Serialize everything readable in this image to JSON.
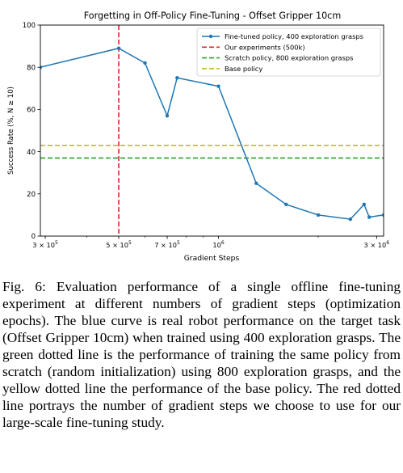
{
  "chart_data": {
    "type": "line",
    "title": "Forgetting in Off-Policy Fine-Tuning - Offset Gripper 10cm",
    "xlabel": "Gradient Steps",
    "ylabel": "Success Rate (%, N ≥ 10)",
    "x_scale": "log",
    "xlim": [
      290000,
      3150000
    ],
    "ylim": [
      0,
      100
    ],
    "x_ticks": [
      {
        "value": 300000,
        "base": "3 × 10",
        "exp": "5"
      },
      {
        "value": 500000,
        "base": "5 × 10",
        "exp": "5"
      },
      {
        "value": 700000,
        "base": "7 × 10",
        "exp": "5"
      },
      {
        "value": 1000000,
        "base": "10",
        "exp": "6"
      },
      {
        "value": 3000000,
        "base": "3 × 10",
        "exp": "6"
      }
    ],
    "y_ticks": [
      0,
      20,
      40,
      60,
      80,
      100
    ],
    "series": [
      {
        "name": "Fine-tuned policy, 400 exploration grasps",
        "color": "#1f77b4",
        "style": "line-marker",
        "x": [
          290000,
          500000,
          600000,
          700000,
          750000,
          1000000,
          1300000,
          1600000,
          2000000,
          2500000,
          2750000,
          2850000,
          3150000
        ],
        "y": [
          80,
          89,
          82,
          57,
          75,
          71,
          25,
          15,
          10,
          8,
          15,
          9,
          10
        ]
      },
      {
        "name": "Our experiments (500k)",
        "color": "#d62728",
        "style": "dashed-vertical",
        "x": 500000
      },
      {
        "name": "Scratch policy, 800 exploration grasps",
        "color": "#2ca02c",
        "style": "dashed-horizontal",
        "y": 37
      },
      {
        "name": "Base policy",
        "color": "#bcbd22",
        "style": "dashed-horizontal",
        "y": 43
      }
    ],
    "legend_position": "top-right",
    "grid": false
  },
  "caption": "Fig. 6: Evaluation performance of a single offline fine-tuning experiment at different numbers of gradient steps (optimization epochs). The blue curve is real robot performance on the target task (Offset Gripper 10cm) when trained using 400 exploration grasps. The green dotted line is the performance of training the same policy from scratch (random initialization) using 800 exploration grasps, and the yellow dotted line the performance of the base policy. The red dotted line portrays the number of gradient steps we choose to use for our large-scale fine-tuning study."
}
